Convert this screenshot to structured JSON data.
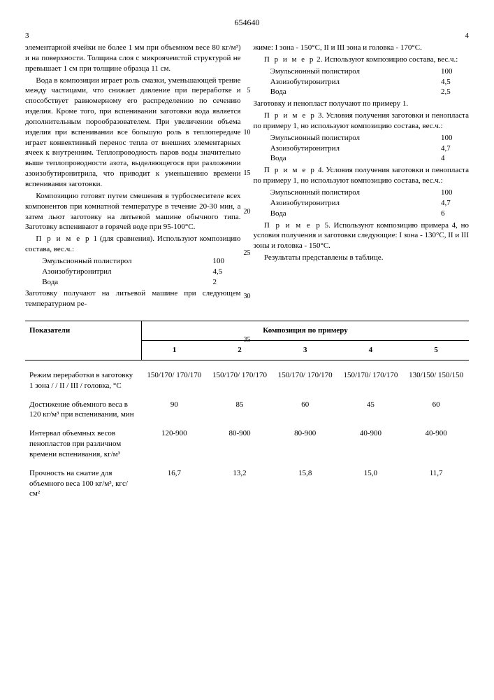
{
  "doc_number": "654640",
  "page_left": "3",
  "page_right": "4",
  "line_markers": [
    "5",
    "10",
    "15",
    "20",
    "25",
    "30",
    "35"
  ],
  "left": {
    "p1": "элементарной ячейки не более 1 мм при объемном весе 80 кг/м³) и на поверхности. Толщина слоя с микроячеистой структурой не превышает 1 см при толщине образца 11 см.",
    "p2": "Вода в композиции играет роль смазки, уменьшающей трение между частицами, что снижает давление при переработке и способствует равномерному его распределению по сечению изделия. Кроме того, при вспенивании заготовки вода является дополнительным порообразователем. При увеличении объема изделия при вспенивании все большую роль в теплопередаче играет конвективный перенос тепла от внешних элементарных ячеек к внутренним. Теплопроводность паров воды значительно выше теплопроводности азота, выделяющегося при разложении азоизобутиронитрила, что приводит к уменьшению времени вспенивания заготовки.",
    "p3": "Композицию готовят путем смешения в турбосмесителе всех компонентов при комнатной температуре в течение 20-30 мин, а затем льют заготовку на литьевой машине обычного типа. Заготовку вспенивают в горячей воде при 95-100°С.",
    "p4a": "П р и м е р",
    "p4b": "1 (для сравнения). Используют композицию состава, вес.ч.:",
    "comp1": [
      {
        "name": "Эмульсионный полистирол",
        "val": "100"
      },
      {
        "name": "Азоизобутиронитрил",
        "val": "4,5"
      },
      {
        "name": "Вода",
        "val": "2"
      }
    ],
    "p5": "Заготовку получают на литьевой машине при следующем температурном ре-"
  },
  "right": {
    "p1": "жиме: I зона - 150°С, II и III зона и головка - 170°С.",
    "p2a": "П р и м е р",
    "p2b": "2. Используют композицию состава, вес.ч.:",
    "comp2": [
      {
        "name": "Эмульсионный полистирол",
        "val": "100"
      },
      {
        "name": "Азоизобутиронитрил",
        "val": "4,5"
      },
      {
        "name": "Вода",
        "val": "2,5"
      }
    ],
    "p3": "Заготовку и пенопласт получают по примеру 1.",
    "p4a": "П р и м е р",
    "p4b": "3. Условия получения заготовки и пенопласта по примеру 1, но используют композицию состава, вес.ч.:",
    "comp3": [
      {
        "name": "Эмульсионный полистирол",
        "val": "100"
      },
      {
        "name": "Азоизобутиронитрил",
        "val": "4,7"
      },
      {
        "name": "Вода",
        "val": "4"
      }
    ],
    "p5a": "П р и м е р",
    "p5b": "4. Условия получения заготовки и пенопласта по примеру 1, но используют композицию состава, вес.ч.:",
    "comp4": [
      {
        "name": "Эмульсионный полистирол",
        "val": "100"
      },
      {
        "name": "Азоизобутиронитрил",
        "val": "4,7"
      },
      {
        "name": "Вода",
        "val": "6"
      }
    ],
    "p6a": "П р и м е р",
    "p6b": "5. Используют композицию примера 4, но условия получения и заготовки следующие: I зона - 130°С, II и III зоны и головка - 150°С.",
    "p7": "Результаты представлены в таблице."
  },
  "table": {
    "header_left": "Показатели",
    "header_span": "Композиция по примеру",
    "cols": [
      "1",
      "2",
      "3",
      "4",
      "5"
    ],
    "rows": [
      {
        "label": "Режим переработки в заготовку 1 зона / / II / III / головка, °С",
        "vals": [
          "150/170/ 170/170",
          "150/170/ 170/170",
          "150/170/ 170/170",
          "150/170/ 170/170",
          "130/150/ 150/150"
        ]
      },
      {
        "label": "Достижение объемного веса в 120 кг/м³ при вспенивании, мин",
        "vals": [
          "90",
          "85",
          "60",
          "45",
          "60"
        ]
      },
      {
        "label": "Интервал объемных весов пенопластов при различном времени вспенивания, кг/м³",
        "vals": [
          "120-900",
          "80-900",
          "80-900",
          "40-900",
          "40-900"
        ]
      },
      {
        "label": "Прочность на сжатие для объемного веса 100 кг/м³, кгс/см²",
        "vals": [
          "16,7",
          "13,2",
          "15,8",
          "15,0",
          "11,7"
        ]
      }
    ]
  }
}
